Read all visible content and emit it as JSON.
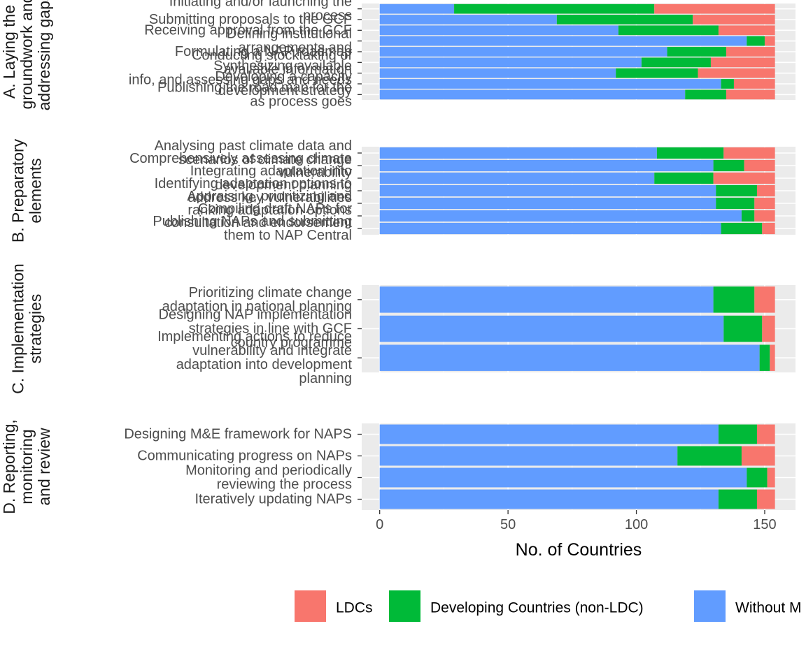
{
  "colors": {
    "panel_bg": "#ebebeb",
    "grid_major": "#ffffff",
    "grid_minor": "#f5f5f5",
    "tick_text": "#4d4d4d",
    "axis_tick": "#333333"
  },
  "chart_data": {
    "type": "bar",
    "orientation": "horizontal",
    "stacked": true,
    "xlabel": "No. of Countries",
    "xlim": [
      -7,
      162
    ],
    "xticks": [
      0,
      50,
      100,
      150
    ],
    "grid": true,
    "legend_position": "bottom",
    "series": [
      {
        "key": "without",
        "name": "Without M",
        "color": "#619cff"
      },
      {
        "key": "dev",
        "name": "Developing Countries  (non-LDC)",
        "color": "#00ba38"
      },
      {
        "key": "ldc",
        "name": "LDCs",
        "color": "#f8766d"
      }
    ],
    "legend_order": [
      "ldc",
      "dev",
      "without"
    ],
    "facets": [
      {
        "label_lines": [
          "A. Laying the",
          "groundwork and",
          "addressing gaps"
        ],
        "bars": [
          {
            "label_lines": [
              "Initiating and/or launching the",
              "process"
            ],
            "without": 29,
            "dev": 78,
            "ldc": 47
          },
          {
            "label_lines": [
              "Submitting proposals to the GCF"
            ],
            "without": 69,
            "dev": 53,
            "ldc": 32
          },
          {
            "label_lines": [
              "Receiving approval from the GCF"
            ],
            "without": 93,
            "dev": 39,
            "ldc": 22
          },
          {
            "label_lines": [
              "Defining institutional",
              "arrangements and"
            ],
            "without": 143,
            "dev": 7,
            "ldc": 4
          },
          {
            "label_lines": [
              "Formulating a NAP roadmap"
            ],
            "without": 112,
            "dev": 23,
            "ldc": 19
          },
          {
            "label_lines": [
              "Conducting stocktaking of",
              "available information"
            ],
            "without": 102,
            "dev": 27,
            "ldc": 25
          },
          {
            "label_lines": [
              "Synthesizing available",
              "info, and assessing gaps and needs"
            ],
            "without": 92,
            "dev": 32,
            "ldc": 30
          },
          {
            "label_lines": [
              "Developing a capacity",
              "development strategy"
            ],
            "without": 133,
            "dev": 5,
            "ldc": 16
          },
          {
            "label_lines": [
              "Publishing the road map for the",
              "as process goes"
            ],
            "without": 119,
            "dev": 16,
            "ldc": 19
          }
        ]
      },
      {
        "label_lines": [
          "B. Preparatory",
          "elements"
        ],
        "bars": [
          {
            "label_lines": [
              "Analysing past climate data and",
              "scenarios of climate change"
            ],
            "without": 108,
            "dev": 26,
            "ldc": 20
          },
          {
            "label_lines": [
              "Comprehensively assessing climate",
              "vulnerability"
            ],
            "without": 130,
            "dev": 12,
            "ldc": 12
          },
          {
            "label_lines": [
              "Integrating adaptation into",
              "development planning"
            ],
            "without": 107,
            "dev": 23,
            "ldc": 24
          },
          {
            "label_lines": [
              "Identifying adaptation options to",
              "address key vulnerabilities"
            ],
            "without": 131,
            "dev": 16,
            "ldc": 7
          },
          {
            "label_lines": [
              "Appraising, prioritizing and",
              "ranking adaptation options"
            ],
            "without": 131,
            "dev": 15,
            "ldc": 8
          },
          {
            "label_lines": [
              "Compiling draft NAPs for",
              "consultation and endorsement"
            ],
            "without": 141,
            "dev": 5,
            "ldc": 8
          },
          {
            "label_lines": [
              "Publishing NAPs and submitting",
              "them to NAP Central"
            ],
            "without": 133,
            "dev": 16,
            "ldc": 5
          }
        ]
      },
      {
        "label_lines": [
          "C. Implementation",
          "strategies"
        ],
        "bars": [
          {
            "label_lines": [
              "Prioritizing climate change",
              "adaptation in national planning"
            ],
            "without": 130,
            "dev": 16,
            "ldc": 8
          },
          {
            "label_lines": [
              "Designing NAP implementation",
              "strategies in line with GCF",
              "country programme"
            ],
            "without": 134,
            "dev": 15,
            "ldc": 5
          },
          {
            "label_lines": [
              "Implementing actions to reduce",
              "vulnerability and integrate",
              "adaptation into development",
              "planning"
            ],
            "without": 148,
            "dev": 4,
            "ldc": 2
          }
        ]
      },
      {
        "label_lines": [
          "D. Reporting,",
          "monitoring",
          "and review"
        ],
        "bars": [
          {
            "label_lines": [
              "Designing M&E framework for NAPS"
            ],
            "without": 132,
            "dev": 15,
            "ldc": 7
          },
          {
            "label_lines": [
              "Communicating progress on NAPs"
            ],
            "without": 116,
            "dev": 25,
            "ldc": 13
          },
          {
            "label_lines": [
              "Monitoring and periodically",
              "reviewing the process"
            ],
            "without": 143,
            "dev": 8,
            "ldc": 3
          },
          {
            "label_lines": [
              "Iteratively updating NAPs"
            ],
            "without": 132,
            "dev": 15,
            "ldc": 7
          }
        ]
      }
    ]
  }
}
